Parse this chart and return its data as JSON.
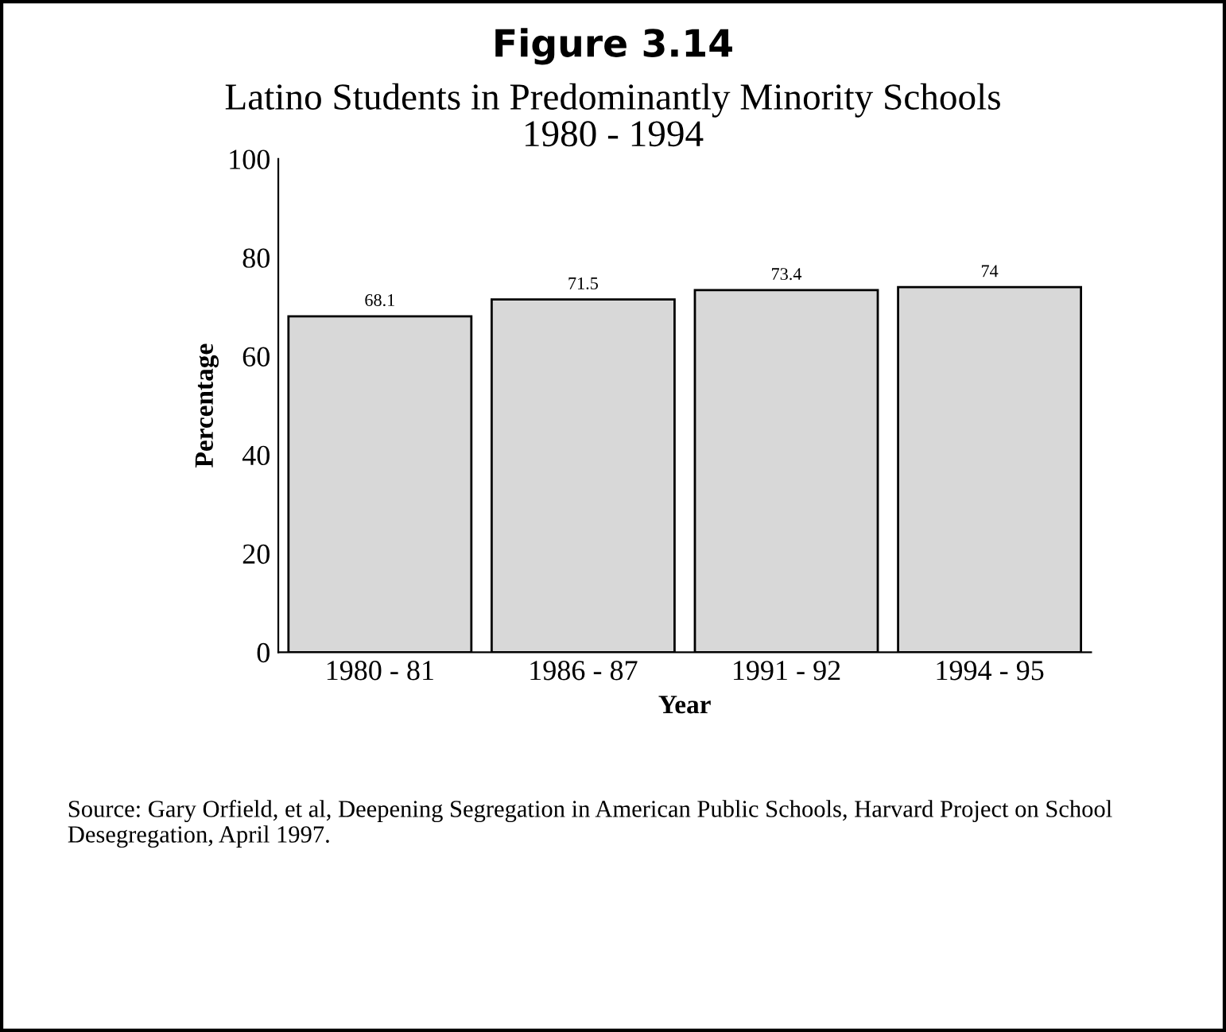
{
  "chart_data": {
    "type": "bar",
    "title": "Figure 3.14",
    "subtitle": "Latino Students in Predominantly Minority Schools\n1980 - 1994",
    "categories": [
      "1980 - 81",
      "1986 - 87",
      "1991 - 92",
      "1994 - 95"
    ],
    "values": [
      68.1,
      71.5,
      73.4,
      74
    ],
    "color": "#d8d8d8",
    "xlabel": "Year",
    "ylabel": "Percentage",
    "ylim": [
      0,
      100
    ],
    "yticks": [
      0,
      20,
      40,
      60,
      80,
      100
    ],
    "grid": false,
    "data_labels": true,
    "annotations": [
      "Source: Gary Orfield, et al, Deepening Segregation in American Public Schools, Harvard Project on School Desegregation, April 1997."
    ]
  }
}
